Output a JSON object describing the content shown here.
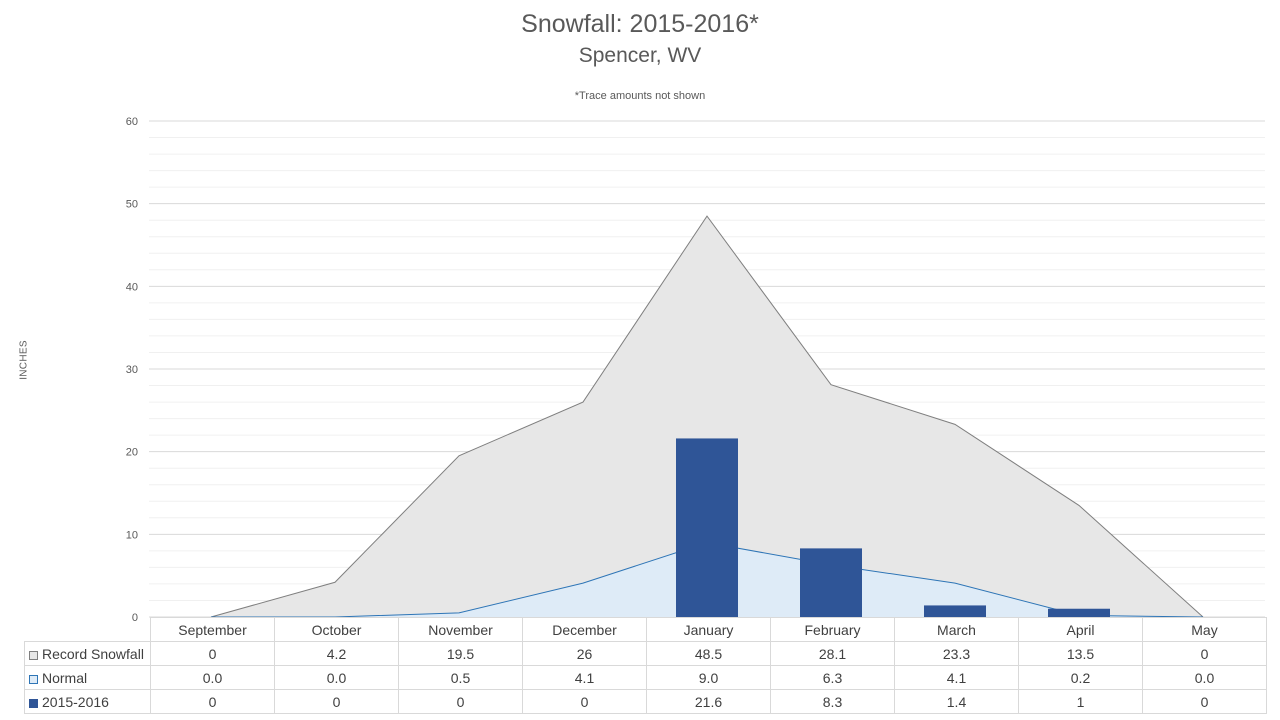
{
  "chart_data": {
    "type": "area",
    "title": "Snowfall: 2015-2016*",
    "subtitle": "Spencer, WV",
    "note": "*Trace amounts not shown",
    "ylabel": "INCHES",
    "ylim": [
      0,
      60
    ],
    "yticks": [
      0,
      10,
      20,
      30,
      40,
      50,
      60
    ],
    "grid": true,
    "categories": [
      "September",
      "October",
      "November",
      "December",
      "January",
      "February",
      "March",
      "April",
      "May"
    ],
    "series": [
      {
        "name": "Record Snowfall",
        "type": "area",
        "color": "#e7e7e7",
        "line_color": "#7f7f7f",
        "values": [
          0,
          4.2,
          19.5,
          26,
          48.5,
          28.1,
          23.3,
          13.5,
          0
        ],
        "labels": [
          "0",
          "4.2",
          "19.5",
          "26",
          "48.5",
          "28.1",
          "23.3",
          "13.5",
          "0"
        ]
      },
      {
        "name": "Normal",
        "type": "area",
        "color": "#deebf7",
        "line_color": "#2e75b6",
        "values": [
          0.0,
          0.0,
          0.5,
          4.1,
          9.0,
          6.3,
          4.1,
          0.2,
          0.0
        ],
        "labels": [
          "0.0",
          "0.0",
          "0.5",
          "4.1",
          "9.0",
          "6.3",
          "4.1",
          "0.2",
          "0.0"
        ]
      },
      {
        "name": "2015-2016",
        "type": "bar",
        "color": "#2f5597",
        "values": [
          0,
          0,
          0,
          0,
          21.6,
          8.3,
          1.4,
          1,
          0
        ],
        "labels": [
          "0",
          "0",
          "0",
          "0",
          "21.6",
          "8.3",
          "1.4",
          "1",
          "0"
        ]
      }
    ]
  }
}
